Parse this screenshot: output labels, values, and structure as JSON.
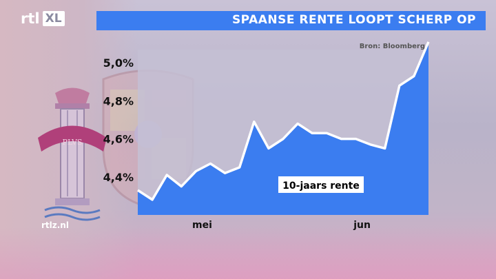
{
  "branding": {
    "logo_rtl": "rtl",
    "logo_xl": "XL",
    "website": "rtlz.nl"
  },
  "colors": {
    "title_bar": "#3b7df0",
    "area_fill": "#3b7df0",
    "line": "#ffffff",
    "plot_background": "#c4c0d4"
  },
  "emblem": {
    "motto": "PLVS"
  },
  "chart_data": {
    "type": "area",
    "title": "SPAANSE RENTE LOOPT SCHERP OP",
    "source": "Bron: Bloomberg",
    "series": [
      {
        "name": "10-jaars rente",
        "values": [
          4.33,
          4.28,
          4.41,
          4.35,
          4.43,
          4.47,
          4.42,
          4.45,
          4.69,
          4.55,
          4.6,
          4.68,
          4.63,
          4.63,
          4.6,
          4.6,
          4.57,
          4.55,
          4.88,
          4.93,
          5.11
        ]
      }
    ],
    "yticks": [
      {
        "value": 4.4,
        "label": "4,4%"
      },
      {
        "value": 4.6,
        "label": "4,6%"
      },
      {
        "value": 4.8,
        "label": "4,8%"
      },
      {
        "value": 5.0,
        "label": "5,0%"
      }
    ],
    "xticks": [
      {
        "index": 5,
        "label": "mei"
      },
      {
        "index": 16,
        "label": "jun"
      }
    ],
    "ylim": [
      4.2,
      5.12
    ],
    "grid": false,
    "legend": "inside-center"
  }
}
